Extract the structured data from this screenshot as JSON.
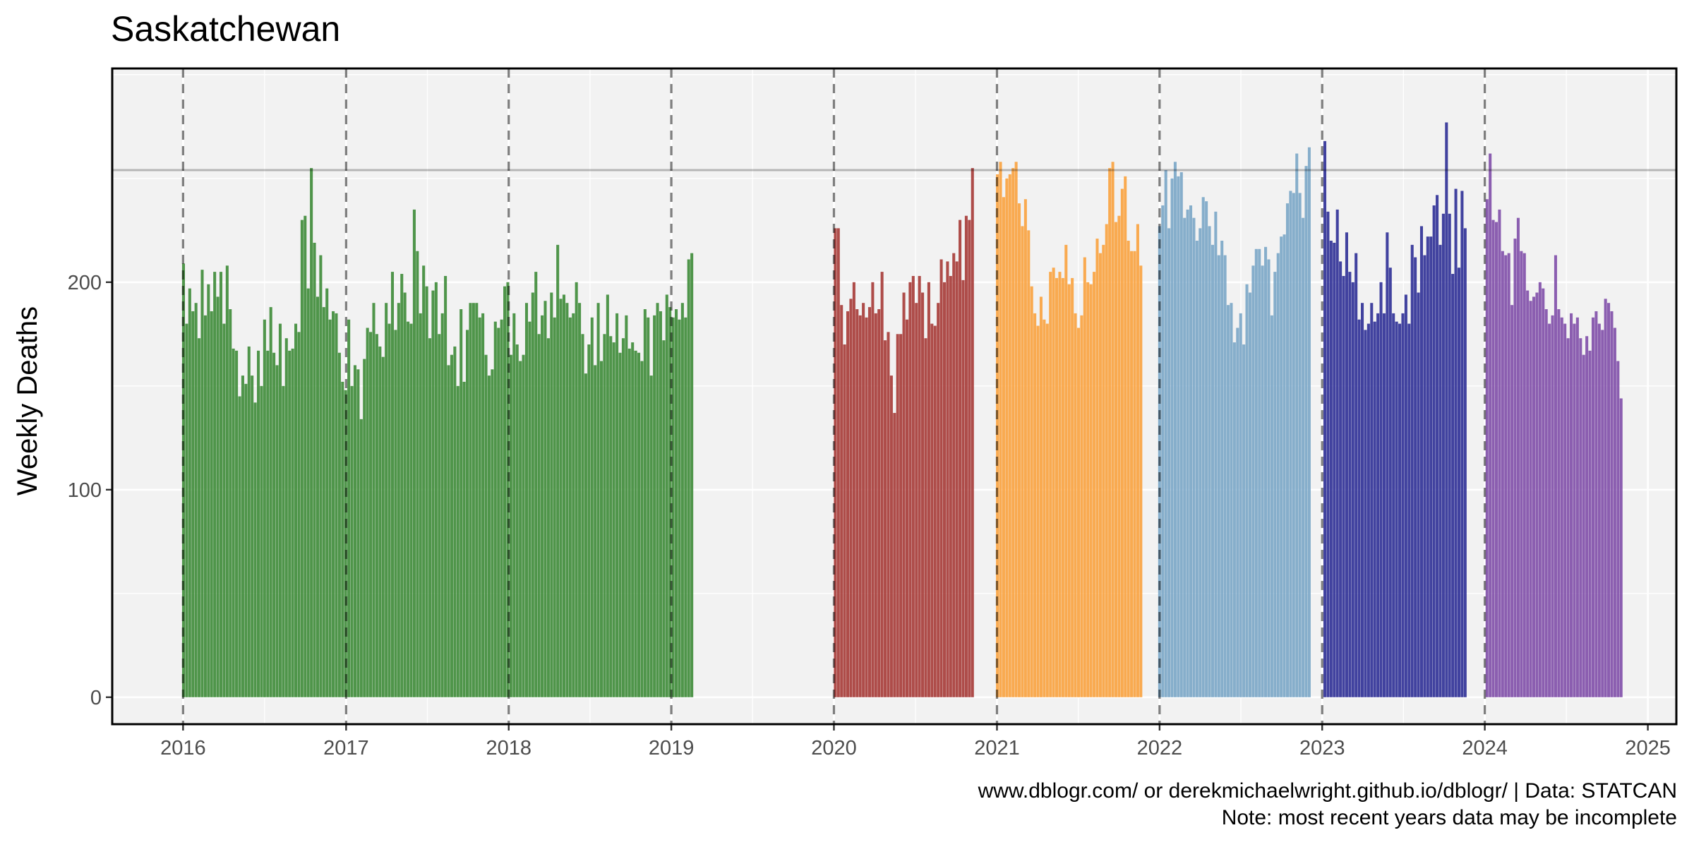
{
  "chart_data": {
    "type": "bar",
    "title": "Saskatchewan",
    "xlabel": "",
    "ylabel": "Weekly Deaths",
    "x_ticks": [
      "2016",
      "2017",
      "2018",
      "2019",
      "2020",
      "2021",
      "2022",
      "2023",
      "2024",
      "2025"
    ],
    "y_ticks": [
      "0",
      "100",
      "200"
    ],
    "xlim": [
      "2015-07-26",
      "2025-03-06"
    ],
    "ylim": [
      -13,
      303
    ],
    "grid": true,
    "reference_line": 254,
    "year_lines": [
      "2016-01-01",
      "2017-01-01",
      "2018-01-01",
      "2019-01-01",
      "2020-01-01",
      "2021-01-01",
      "2022-01-01",
      "2023-01-01",
      "2024-01-01"
    ],
    "caption": [
      "www.dblogr.com/ or derekmichaelwright.github.io/dblogr/ | Data: STATCAN",
      "Note: most recent years data may be incomplete"
    ],
    "series": [
      {
        "period": "2016-2019",
        "color": "#3d8b37",
        "start_week": "2016-01-02",
        "values": [
          209,
          180,
          197,
          186,
          190,
          173,
          206,
          184,
          199,
          186,
          205,
          193,
          205,
          180,
          208,
          187,
          168,
          167,
          145,
          155,
          151,
          169,
          155,
          142,
          167,
          150,
          182,
          167,
          188,
          166,
          160,
          180,
          150,
          173,
          167,
          168,
          180,
          176,
          230,
          232,
          197,
          255,
          219,
          193,
          213,
          188,
          197,
          182,
          186,
          185,
          166,
          152,
          148,
          182,
          150,
          160,
          158,
          134,
          163,
          178,
          176,
          190,
          175,
          169,
          164,
          190,
          180,
          205,
          177,
          190,
          204,
          195,
          181,
          180,
          235,
          215,
          185,
          208,
          198,
          173,
          196,
          200,
          175,
          185,
          203,
          160,
          165,
          169,
          150,
          187,
          152,
          177,
          190,
          190,
          190,
          183,
          185,
          165,
          155,
          158,
          181,
          178,
          182,
          198,
          200,
          165,
          185,
          170,
          162,
          165,
          190,
          181,
          195,
          205,
          175,
          184,
          191,
          173,
          195,
          183,
          218,
          192,
          194,
          190,
          183,
          185,
          200,
          190,
          175,
          156,
          170,
          183,
          160,
          190,
          162,
          175,
          194,
          174,
          171,
          185,
          166,
          173,
          184,
          168,
          171,
          167,
          166,
          162,
          187,
          183,
          155,
          184,
          190,
          186,
          172,
          194,
          188,
          183,
          187,
          182,
          190,
          183,
          211,
          214
        ]
      },
      {
        "period": "2020",
        "color": "#a63a36",
        "start_week": "2020-01-04",
        "values": [
          226,
          226,
          189,
          170,
          186,
          192,
          200,
          187,
          184,
          190,
          183,
          188,
          200,
          185,
          187,
          205,
          172,
          176,
          155,
          137,
          175,
          175,
          195,
          182,
          200,
          203,
          190,
          203,
          195,
          173,
          200,
          180,
          179,
          190,
          211,
          200,
          210,
          203,
          214,
          210,
          230,
          201,
          232,
          230,
          255
        ]
      },
      {
        "period": "2021",
        "color": "#f9a23e",
        "start_week": "2021-01-02",
        "values": [
          252,
          258,
          241,
          250,
          252,
          255,
          258,
          238,
          227,
          240,
          225,
          198,
          185,
          179,
          193,
          182,
          180,
          205,
          207,
          202,
          205,
          202,
          218,
          199,
          202,
          185,
          178,
          184,
          212,
          200,
          199,
          205,
          221,
          214,
          218,
          228,
          255,
          258,
          229,
          232,
          245,
          251,
          220,
          215,
          215,
          228,
          208
        ]
      },
      {
        "period": "2022",
        "color": "#7aa6c7",
        "start_week": "2022-01-01",
        "values": [
          227,
          237,
          254,
          226,
          250,
          258,
          251,
          253,
          231,
          235,
          237,
          231,
          220,
          226,
          241,
          239,
          227,
          218,
          234,
          213,
          220,
          213,
          189,
          190,
          171,
          178,
          185,
          170,
          199,
          195,
          208,
          216,
          216,
          208,
          217,
          211,
          184,
          205,
          214,
          222,
          223,
          238,
          244,
          243,
          262,
          243,
          231,
          256,
          265
        ]
      },
      {
        "period": "2023",
        "color": "#2e2f96",
        "start_week": "2023-01-07",
        "values": [
          268,
          234,
          220,
          219,
          235,
          210,
          203,
          224,
          205,
          200,
          214,
          182,
          190,
          177,
          180,
          190,
          181,
          185,
          200,
          185,
          224,
          207,
          185,
          181,
          180,
          185,
          194,
          180,
          218,
          212,
          195,
          227,
          213,
          222,
          222,
          237,
          242,
          218,
          233,
          277,
          233,
          204,
          245,
          207,
          244,
          226
        ]
      },
      {
        "period": "2024",
        "color": "#7f4ea8",
        "start_week": "2024-01-06",
        "values": [
          240,
          262,
          230,
          229,
          235,
          215,
          213,
          214,
          189,
          221,
          231,
          215,
          214,
          196,
          191,
          193,
          195,
          200,
          197,
          187,
          180,
          184,
          213,
          187,
          183,
          180,
          173,
          185,
          180,
          183,
          173,
          165,
          174,
          167,
          183,
          186,
          180,
          177,
          192,
          190,
          186,
          178,
          162,
          144
        ]
      }
    ]
  }
}
